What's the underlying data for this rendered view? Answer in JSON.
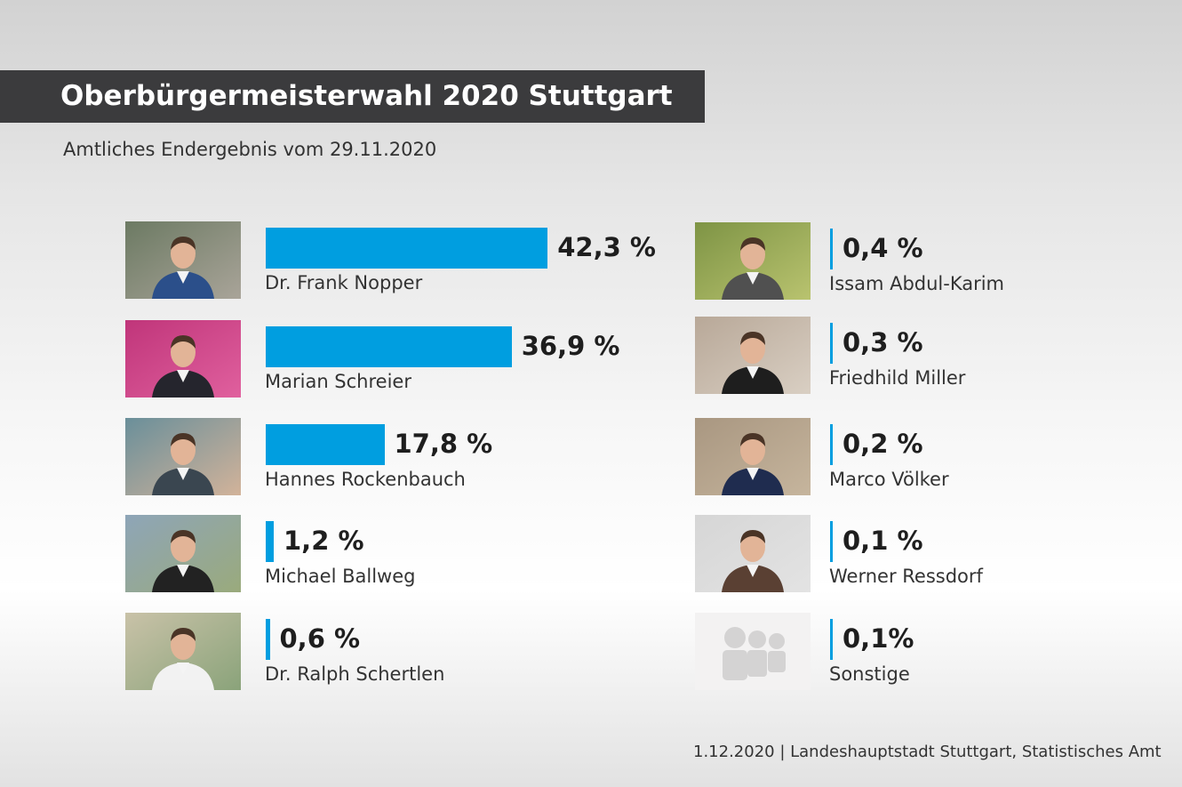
{
  "title": "Oberbürgermeisterwahl 2020 Stuttgart",
  "subtitle": "Amtliches Endergebnis vom 29.11.2020",
  "source": "1.12.2020 | Landeshauptstadt Stuttgart, Statistisches Amt",
  "colors": {
    "bar": "#009ee0",
    "title_bg": "#3b3b3d"
  },
  "chart_data": {
    "type": "bar",
    "categories": [
      "Dr. Frank Nopper",
      "Marian Schreier",
      "Hannes Rockenbauch",
      "Michael Ballweg",
      "Dr. Ralph Schertlen",
      "Issam Abdul-Karim",
      "Friedhild Miller",
      "Marco Völker",
      "Werner Ressdorf",
      "Sonstige"
    ],
    "values": [
      42.3,
      36.9,
      17.8,
      1.2,
      0.6,
      0.4,
      0.3,
      0.2,
      0.1,
      0.1
    ],
    "labels": [
      "42,3 %",
      "36,9 %",
      "17,8 %",
      "1,2 %",
      "0,6 %",
      "0,4 %",
      "0,3 %",
      "0,2 %",
      "0,1 %",
      "0,1%"
    ],
    "title": "Oberbürgermeisterwahl 2020 Stuttgart",
    "subtitle": "Amtliches Endergebnis vom 29.11.2020",
    "unit": "%"
  },
  "candidates": [
    {
      "name": "Dr. Frank Nopper",
      "label": "42,3 %",
      "photo": "portrait-photo"
    },
    {
      "name": "Marian Schreier",
      "label": "36,9 %",
      "photo": "portrait-photo"
    },
    {
      "name": "Hannes Rockenbauch",
      "label": "17,8 %",
      "photo": "portrait-photo"
    },
    {
      "name": "Michael Ballweg",
      "label": "1,2 %",
      "photo": "portrait-photo"
    },
    {
      "name": "Dr. Ralph Schertlen",
      "label": "0,6 %",
      "photo": "portrait-photo"
    },
    {
      "name": "Issam Abdul-Karim",
      "label": "0,4 %",
      "photo": "portrait-photo"
    },
    {
      "name": "Friedhild Miller",
      "label": "0,3 %",
      "photo": "portrait-photo"
    },
    {
      "name": "Marco Völker",
      "label": "0,2 %",
      "photo": "portrait-photo"
    },
    {
      "name": "Werner Ressdorf",
      "label": "0,1 %",
      "photo": "portrait-photo"
    },
    {
      "name": "Sonstige",
      "label": "0,1%",
      "photo": "group-placeholder-icon"
    }
  ]
}
